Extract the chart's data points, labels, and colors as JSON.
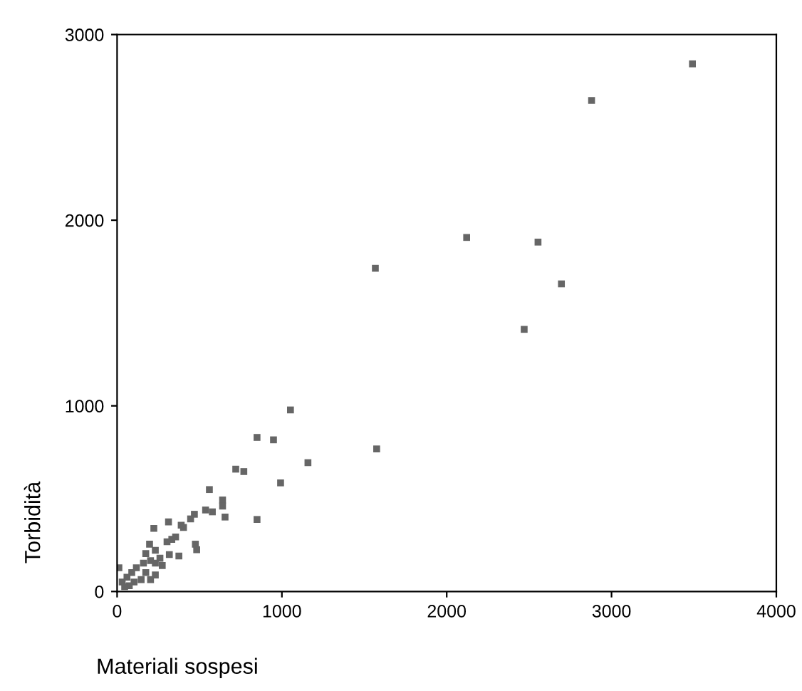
{
  "chart_data": {
    "type": "scatter",
    "xlabel": "Materiali sospesi",
    "ylabel": "Torbidità",
    "xlim": [
      0,
      4000
    ],
    "ylim": [
      0,
      3000
    ],
    "xticks": [
      0,
      1000,
      2000,
      3000,
      4000
    ],
    "yticks": [
      0,
      1000,
      2000,
      3000
    ],
    "grid": false,
    "marker": "square",
    "series": [
      {
        "color": "#666666",
        "x": [
          3491,
          2879,
          2121,
          2554,
          1567,
          2696,
          2470,
          1052,
          849,
          949,
          1575,
          1158,
          720,
          769,
          992,
          560,
          849,
          640,
          640,
          655,
          537,
          578,
          469,
          446,
          389,
          403,
          312,
          223,
          475,
          483,
          332,
          355,
          303,
          317,
          197,
          232,
          174,
          203,
          160,
          117,
          89,
          60,
          31,
          11,
          232,
          174,
          146,
          103,
          74,
          203,
          274,
          260,
          232,
          46,
          375
        ],
        "values": [
          2842,
          2645,
          1907,
          1882,
          1741,
          1657,
          1412,
          978,
          830,
          817,
          768,
          694,
          659,
          646,
          585,
          549,
          388,
          493,
          460,
          401,
          439,
          429,
          416,
          391,
          357,
          345,
          375,
          340,
          255,
          225,
          281,
          294,
          268,
          199,
          255,
          222,
          204,
          166,
          153,
          128,
          102,
          77,
          51,
          128,
          89,
          102,
          64,
          51,
          31,
          64,
          140,
          179,
          153,
          26,
          191
        ]
      }
    ]
  }
}
